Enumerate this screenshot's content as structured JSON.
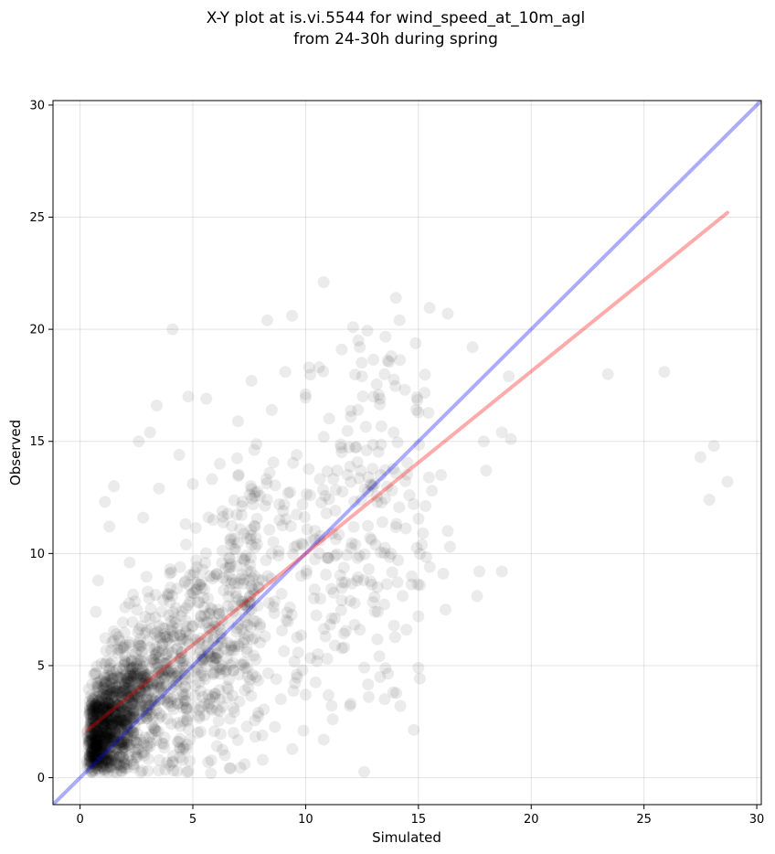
{
  "chart_data": {
    "type": "scatter",
    "title": "X-Y plot at is.vi.5544 for wind_speed_at_10m_agl",
    "subtitle": "from 24-30h during spring",
    "xlabel": "Simulated",
    "ylabel": "Observed",
    "xlim": [
      -1.2,
      30.2
    ],
    "ylim": [
      -1.2,
      30.2
    ],
    "xticks": [
      "0",
      "5",
      "10",
      "15",
      "20",
      "25",
      "30"
    ],
    "yticks": [
      "0",
      "5",
      "10",
      "15",
      "20",
      "25",
      "30"
    ],
    "grid": true,
    "point_color": "#000000",
    "identity_line": {
      "name": "",
      "color": "#0000ff",
      "x": [
        -1.2,
        30.2
      ],
      "y": [
        -1.2,
        30.2
      ]
    },
    "fit_line": {
      "name": "",
      "color": "#ff0000",
      "x": [
        0.3,
        28.7
      ],
      "y": [
        2.1,
        25.2
      ]
    },
    "sample_points": [
      [
        10.8,
        22.1
      ],
      [
        14.0,
        21.4
      ],
      [
        16.3,
        20.7
      ],
      [
        9.4,
        20.6
      ],
      [
        12.1,
        20.1
      ],
      [
        4.1,
        20.0
      ],
      [
        8.3,
        20.4
      ],
      [
        17.4,
        19.2
      ],
      [
        12.4,
        19.2
      ],
      [
        13.8,
        18.8
      ],
      [
        11.6,
        19.1
      ],
      [
        23.4,
        18.0
      ],
      [
        25.9,
        18.1
      ],
      [
        19.0,
        17.9
      ],
      [
        27.5,
        14.3
      ],
      [
        28.1,
        14.8
      ],
      [
        28.7,
        13.2
      ],
      [
        27.9,
        12.4
      ],
      [
        18.7,
        15.4
      ],
      [
        19.1,
        15.1
      ],
      [
        17.9,
        15.0
      ],
      [
        18.0,
        13.7
      ],
      [
        17.6,
        8.1
      ],
      [
        17.7,
        9.2
      ],
      [
        18.7,
        9.2
      ],
      [
        16.3,
        11.0
      ],
      [
        16.4,
        10.3
      ],
      [
        16.1,
        9.1
      ],
      [
        14.2,
        3.2
      ],
      [
        15.0,
        4.9
      ],
      [
        13.5,
        3.5
      ],
      [
        15.0,
        7.2
      ],
      [
        3.4,
        16.6
      ],
      [
        4.8,
        17.0
      ],
      [
        5.6,
        16.9
      ],
      [
        2.6,
        15.0
      ],
      [
        3.1,
        15.4
      ],
      [
        1.5,
        13.0
      ],
      [
        1.1,
        12.3
      ],
      [
        1.3,
        11.2
      ],
      [
        0.8,
        8.8
      ],
      [
        0.7,
        7.4
      ],
      [
        5.8,
        0.2
      ],
      [
        7.3,
        0.6
      ],
      [
        8.1,
        0.8
      ],
      [
        10.8,
        1.7
      ],
      [
        9.9,
        2.1
      ],
      [
        11.2,
        2.6
      ],
      [
        12.0,
        3.3
      ],
      [
        12.8,
        3.6
      ],
      [
        0.4,
        1.2
      ],
      [
        0.5,
        2.5
      ],
      [
        0.8,
        3.6
      ],
      [
        1.0,
        4.3
      ],
      [
        1.4,
        0.8
      ],
      [
        2.1,
        1.9
      ],
      [
        1.8,
        3.1
      ],
      [
        2.4,
        2.7
      ],
      [
        2.9,
        3.9
      ],
      [
        3.3,
        2.2
      ],
      [
        1.2,
        5.2
      ],
      [
        1.6,
        6.4
      ],
      [
        2.6,
        5.9
      ],
      [
        3.1,
        7.1
      ],
      [
        3.8,
        5.5
      ],
      [
        4.5,
        6.2
      ],
      [
        5.1,
        4.1
      ],
      [
        5.8,
        3.1
      ],
      [
        6.3,
        5.0
      ],
      [
        6.9,
        7.3
      ],
      [
        7.4,
        5.6
      ],
      [
        8.2,
        6.3
      ],
      [
        8.7,
        4.4
      ],
      [
        9.3,
        7.6
      ],
      [
        9.8,
        9.0
      ],
      [
        10.4,
        8.4
      ],
      [
        11.0,
        9.8
      ],
      [
        11.6,
        7.9
      ],
      [
        12.2,
        10.4
      ],
      [
        12.8,
        9.3
      ],
      [
        13.4,
        11.4
      ],
      [
        14.1,
        9.7
      ],
      [
        14.6,
        12.6
      ],
      [
        15.2,
        10.9
      ],
      [
        15.6,
        12.8
      ],
      [
        16.0,
        13.5
      ],
      [
        4.0,
        9.3
      ],
      [
        4.7,
        10.4
      ],
      [
        5.3,
        8.6
      ],
      [
        5.9,
        11.5
      ],
      [
        6.6,
        9.8
      ],
      [
        7.2,
        12.3
      ],
      [
        7.8,
        10.7
      ],
      [
        8.4,
        13.6
      ],
      [
        9.0,
        11.9
      ],
      [
        9.6,
        14.4
      ],
      [
        10.2,
        12.6
      ],
      [
        10.8,
        15.2
      ],
      [
        11.4,
        13.7
      ],
      [
        12.0,
        16.1
      ],
      [
        12.7,
        14.6
      ],
      [
        13.3,
        16.9
      ],
      [
        13.9,
        15.4
      ],
      [
        14.4,
        17.3
      ],
      [
        15.0,
        16.3
      ],
      [
        6.2,
        14.0
      ],
      [
        7.0,
        15.9
      ],
      [
        7.6,
        17.7
      ],
      [
        8.5,
        16.4
      ],
      [
        9.1,
        18.1
      ],
      [
        10.0,
        17.1
      ],
      [
        10.6,
        18.3
      ],
      [
        2.2,
        9.6
      ],
      [
        2.8,
        11.6
      ],
      [
        3.5,
        12.9
      ],
      [
        4.4,
        14.4
      ],
      [
        5.0,
        13.1
      ],
      [
        3.0,
        8.3
      ],
      [
        2.0,
        7.6
      ],
      [
        6.8,
        2.0
      ],
      [
        7.9,
        2.9
      ],
      [
        8.9,
        3.5
      ],
      [
        9.6,
        4.6
      ],
      [
        10.5,
        5.2
      ],
      [
        11.3,
        5.9
      ],
      [
        12.4,
        6.6
      ],
      [
        13.2,
        7.4
      ],
      [
        14.3,
        8.1
      ],
      [
        15.5,
        9.4
      ],
      [
        16.2,
        7.5
      ],
      [
        7.5,
        8.8
      ],
      [
        8.8,
        9.9
      ],
      [
        6.0,
        6.9
      ]
    ]
  }
}
